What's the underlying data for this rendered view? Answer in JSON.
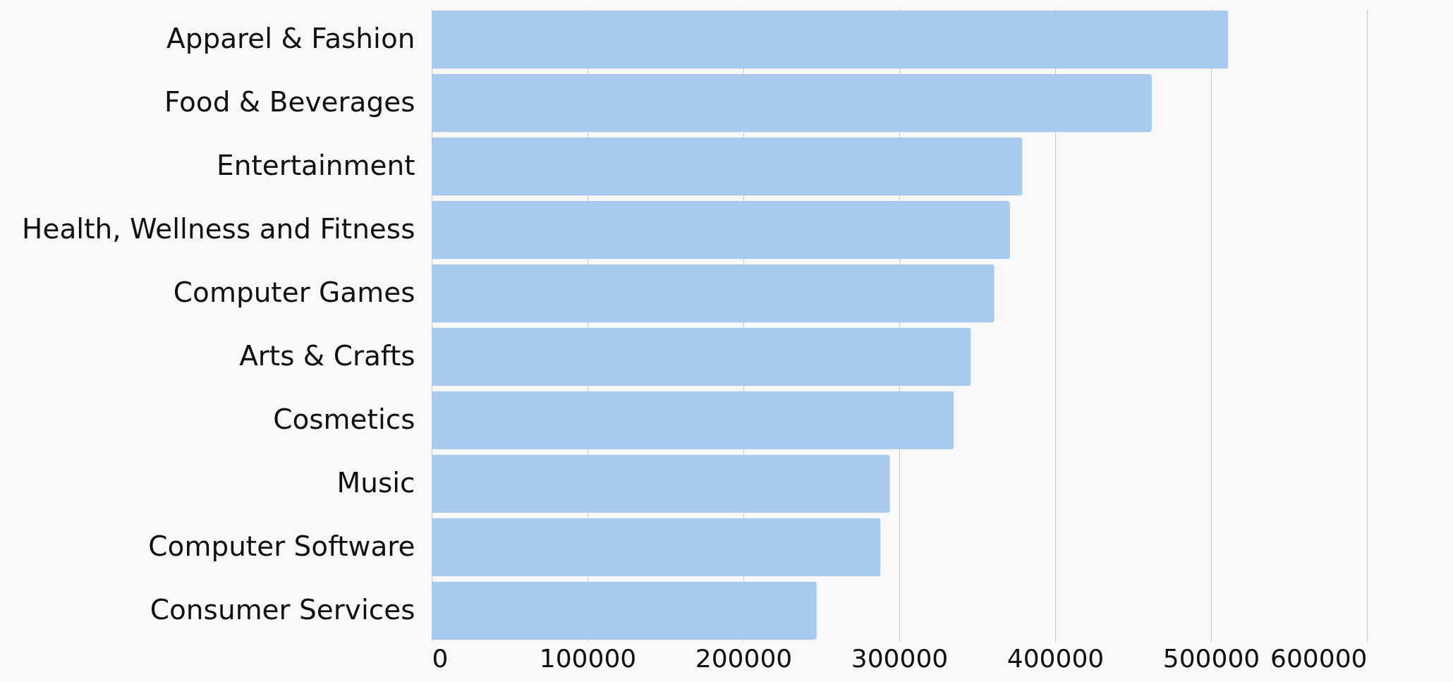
{
  "chart_data": {
    "type": "bar",
    "orientation": "horizontal",
    "categories": [
      "Apparel & Fashion",
      "Food & Beverages",
      "Entertainment",
      "Health, Wellness and Fitness",
      "Computer Games",
      "Arts & Crafts",
      "Cosmetics",
      "Music",
      "Computer Software",
      "Consumer Services"
    ],
    "values": [
      511000,
      462000,
      379000,
      371000,
      361000,
      346000,
      335000,
      294000,
      288000,
      247000
    ],
    "color": "#a8caee",
    "xlim": [
      0,
      600000
    ],
    "xticks": [
      0,
      100000,
      200000,
      300000,
      400000,
      500000,
      600000
    ],
    "grid": "x"
  }
}
